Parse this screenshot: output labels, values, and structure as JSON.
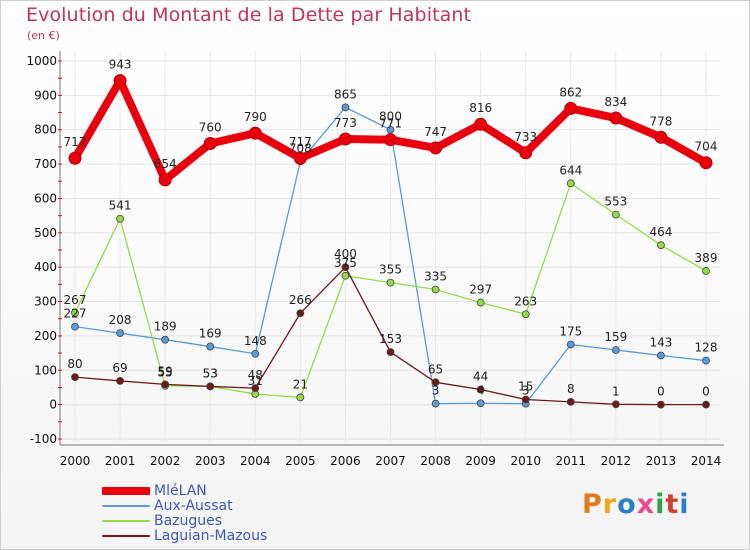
{
  "title": "Evolution du Montant de la Dette par Habitant",
  "subtitle": "(en €)",
  "logo": {
    "text": "Proxiti",
    "letter_colors": [
      "#e07a1c",
      "#f0a51f",
      "#2a7fc9",
      "#e84a8a",
      "#2ea24b",
      "#d63c2c",
      "#2a7fc9"
    ]
  },
  "chart_data": {
    "type": "line",
    "x": [
      "2000",
      "2001",
      "2002",
      "2003",
      "2004",
      "2005",
      "2006",
      "2007",
      "2008",
      "2009",
      "2010",
      "2011",
      "2012",
      "2013",
      "2014"
    ],
    "ylim": [
      -100,
      1000
    ],
    "yticks": [
      -100,
      0,
      100,
      200,
      300,
      400,
      500,
      600,
      700,
      800,
      900,
      1000
    ],
    "grid": true,
    "legend_position": "bottom-left",
    "series": [
      {
        "name": "MléLAN",
        "color": "#e8000e",
        "line_width": 8,
        "marker_radius": 6,
        "values": [
          717,
          943,
          654,
          760,
          790,
          717,
          773,
          771,
          747,
          816,
          733,
          862,
          834,
          778,
          704
        ]
      },
      {
        "name": "Aux-Aussat",
        "color": "#5b9ad5",
        "line_width": 1.3,
        "marker_radius": 3.5,
        "values": [
          227,
          208,
          189,
          169,
          148,
          708,
          865,
          800,
          3,
          4,
          3,
          175,
          159,
          143,
          128
        ]
      },
      {
        "name": "Bazugues",
        "color": "#92dc4a",
        "line_width": 1.3,
        "marker_radius": 3.5,
        "values": [
          267,
          541,
          55,
          53,
          31,
          21,
          375,
          355,
          335,
          297,
          263,
          644,
          553,
          464,
          389
        ]
      },
      {
        "name": "Laguian-Mazous",
        "color": "#6e1a1a",
        "line_width": 1.3,
        "marker_radius": 3.5,
        "values": [
          80,
          69,
          59,
          53,
          48,
          266,
          400,
          153,
          65,
          44,
          15,
          8,
          1,
          0,
          0
        ]
      }
    ]
  }
}
